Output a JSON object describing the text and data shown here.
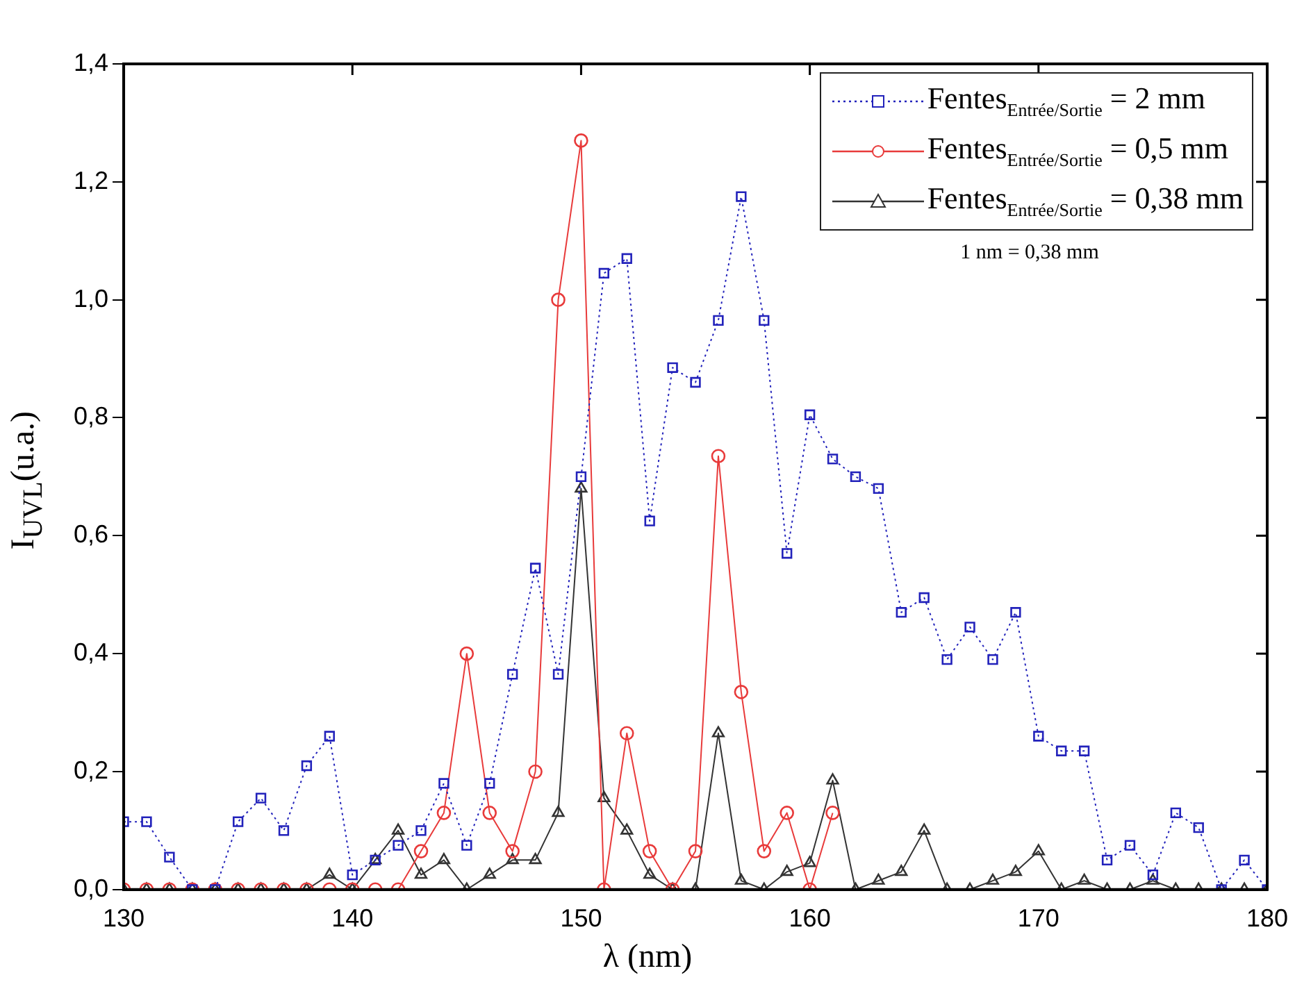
{
  "chart_data": {
    "type": "line",
    "xlabel": "λ (nm)",
    "ylabel": "I$_{UVL}$(u.a.)",
    "x": [
      130,
      131,
      132,
      133,
      134,
      135,
      136,
      137,
      138,
      139,
      140,
      141,
      142,
      143,
      144,
      145,
      146,
      147,
      148,
      149,
      150,
      151,
      152,
      153,
      154,
      155,
      156,
      157,
      158,
      159,
      160,
      161,
      162,
      163,
      164,
      165,
      166,
      167,
      168,
      169,
      170,
      171,
      172,
      173,
      174,
      175,
      176,
      177,
      178,
      179,
      180
    ],
    "xlim": [
      130,
      180
    ],
    "xticks": [
      130,
      140,
      150,
      160,
      170,
      180
    ],
    "ylim": [
      0,
      1.4
    ],
    "yticks": [
      {
        "value": 0,
        "label": "0,0"
      },
      {
        "value": 0.2,
        "label": "0,2"
      },
      {
        "value": 0.4,
        "label": "0,4"
      },
      {
        "value": 0.6,
        "label": "0,6"
      },
      {
        "value": 0.8,
        "label": "0,8"
      },
      {
        "value": 1.0,
        "label": "1,0"
      },
      {
        "value": 1.2,
        "label": "1,2"
      },
      {
        "value": 1.4,
        "label": "1,4"
      }
    ],
    "grid": false,
    "legend": "top right",
    "annotations": [
      "1 nm = 0,38 mm"
    ],
    "series": [
      {
        "name": "Fentes$_{Entrée/Sortie}$ = 2 mm",
        "color": "#2222bb",
        "marker": "square",
        "line_style": "dotted",
        "values": [
          0.115,
          0.115,
          0.055,
          0,
          0,
          0.115,
          0.155,
          0.1,
          0.21,
          0.26,
          0.025,
          0.05,
          0.075,
          0.1,
          0.18,
          0.075,
          0.18,
          0.365,
          0.545,
          0.365,
          0.7,
          1.045,
          1.07,
          0.625,
          0.885,
          0.86,
          0.965,
          1.175,
          0.965,
          0.57,
          0.805,
          0.73,
          0.7,
          0.68,
          0.47,
          0.495,
          0.39,
          0.445,
          0.39,
          0.47,
          0.26,
          0.235,
          0.235,
          0.05,
          0.075,
          0.025,
          0.13,
          0.105,
          0,
          0.05,
          0
        ]
      },
      {
        "name": "Fentes$_{Entrée/Sortie}$ = 0,5 mm",
        "color": "#e83a3a",
        "marker": "circle",
        "line_style": "solid",
        "values": [
          0,
          0,
          0,
          0,
          0,
          0,
          0,
          0,
          0,
          0,
          0,
          0,
          0,
          0.065,
          0.13,
          0.4,
          0.13,
          0.065,
          0.2,
          1.0,
          1.27,
          0,
          0.265,
          0.065,
          0,
          0.065,
          0.735,
          0.335,
          0.065,
          0.13,
          0,
          0.13,
          null,
          null,
          null,
          null,
          null,
          null,
          null,
          null,
          null,
          null,
          null,
          null,
          null,
          null,
          null,
          null,
          null,
          null,
          null
        ]
      },
      {
        "name": "Fentes$_{Entrée/Sortie}$ = 0,38 mm",
        "color": "#333333",
        "marker": "triangle",
        "line_style": "solid",
        "values": [
          0,
          0,
          0,
          0,
          0,
          0,
          0,
          0,
          0,
          0.025,
          0,
          0.05,
          0.1,
          0.025,
          0.05,
          0,
          0.025,
          0.05,
          0.05,
          0.13,
          0.68,
          0.155,
          0.1,
          0.025,
          0,
          0,
          0.265,
          0.015,
          0,
          0.03,
          0.045,
          0.185,
          0,
          0.015,
          0.03,
          0.1,
          0,
          0,
          0.015,
          0.03,
          0.065,
          0,
          0.015,
          0,
          0,
          0.015,
          0,
          0,
          0,
          0,
          0
        ]
      }
    ]
  }
}
